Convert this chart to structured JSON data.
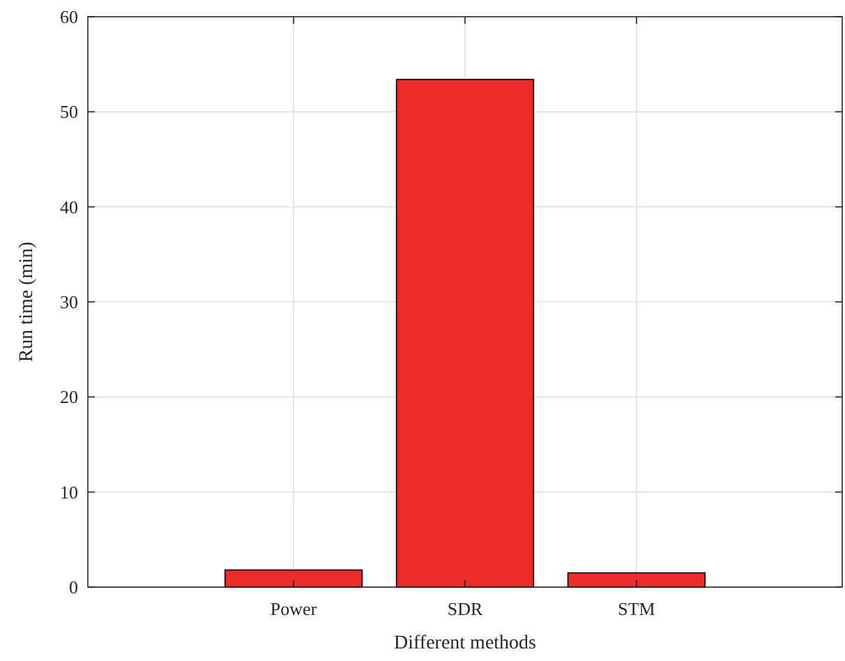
{
  "chart_data": {
    "type": "bar",
    "xlabel": "Different methods",
    "ylabel": "Run time (min)",
    "categories": [
      "Power",
      "SDR",
      "STM"
    ],
    "values": [
      1.8,
      53.4,
      1.5
    ],
    "color": "#ee2a2a",
    "ylim": [
      0,
      60
    ],
    "yticks": [
      0,
      10,
      20,
      30,
      40,
      50,
      60
    ],
    "grid": true
  }
}
